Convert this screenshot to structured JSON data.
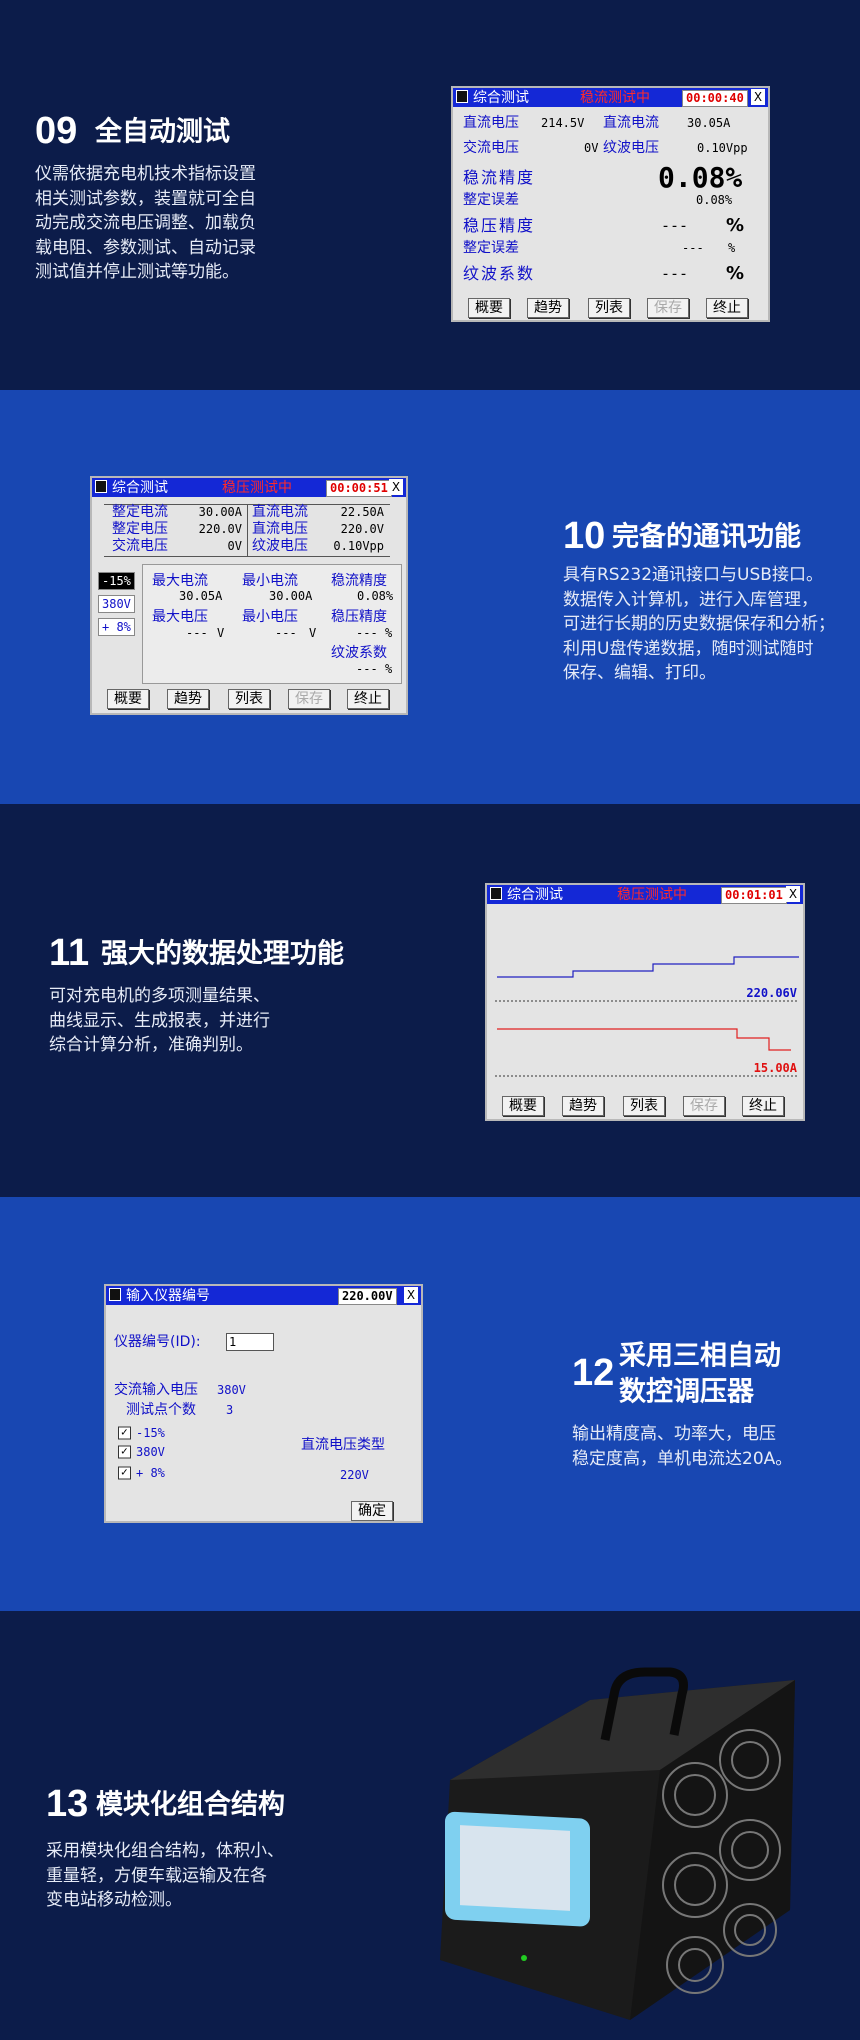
{
  "sections": [
    {
      "number": "09",
      "title": "全自动测试",
      "body": [
        "仪需依据充电机技术指标设置",
        "相关测试参数，装置就可全自",
        "动完成交流电压调整、加载负",
        "载电阻、参数测试、自动记录",
        "测试值并停止测试等功能。"
      ]
    },
    {
      "number": "10",
      "title": "完备的通讯功能",
      "body": [
        "具有RS232通讯接口与USB接口。",
        "数据传入计算机，进行入库管理，",
        "可进行长期的历史数据保存和分析；",
        "利用U盘传递数据，随时测试随时",
        "保存、编辑、打印。"
      ]
    },
    {
      "number": "11",
      "title": "强大的数据处理功能",
      "body": [
        "可对充电机的多项测量结果、",
        "曲线显示、生成报表，并进行",
        "综合计算分析，准确判别。"
      ]
    },
    {
      "number": "12",
      "title": [
        "采用三相自动",
        "数控调压器"
      ],
      "body": [
        "输出精度高、功率大，电压",
        "稳定度高，单机电流达20A。"
      ]
    },
    {
      "number": "13",
      "title": "模块化组合结构",
      "body": [
        "采用模块化组合结构，体积小、",
        "重量轻，方便车载运输及在各",
        "变电站移动检测。"
      ]
    }
  ],
  "screens": [
    {
      "title": "综合测试",
      "status": "稳流测试中",
      "time": "00:00:40",
      "close": "X",
      "r1": [
        "直流电压",
        "214.5V",
        "直流电流",
        "30.05A"
      ],
      "r2": [
        "交流电压",
        "0V",
        "纹波电压",
        "0.10Vpp"
      ],
      "cur_prec": [
        "稳流精度",
        "0.08%"
      ],
      "err1": [
        "整定误差",
        "0.08%"
      ],
      "volt_prec": [
        "稳压精度",
        "---",
        "%"
      ],
      "err2": [
        "整定误差",
        "---",
        "%"
      ],
      "ripple": [
        "纹波系数",
        "---",
        "%"
      ],
      "buttons": [
        "概要",
        "趋势",
        "列表",
        "保存",
        "终止"
      ]
    },
    {
      "title": "综合测试",
      "status": "稳压测试中",
      "time": "00:00:51",
      "close": "X",
      "rows": [
        [
          "整定电流",
          "30.00A",
          "直流电流",
          "22.50A"
        ],
        [
          "整定电压",
          "220.0V",
          "直流电压",
          "220.0V"
        ],
        [
          "交流电压",
          "0V",
          "纹波电压",
          "0.10Vpp"
        ]
      ],
      "side": [
        "-15%",
        "380V",
        "+ 8%"
      ],
      "max_current": [
        "最大电流",
        "30.05A"
      ],
      "min_current": [
        "最小电流",
        "30.00A"
      ],
      "cur_prec": [
        "稳流精度",
        "0.08%"
      ],
      "max_voltage": [
        "最大电压",
        "---",
        "V"
      ],
      "min_voltage": [
        "最小电压",
        "---",
        "V"
      ],
      "volt_prec": [
        "稳压精度",
        "---",
        "%"
      ],
      "ripple": [
        "纹波系数",
        "---",
        "%"
      ],
      "buttons": [
        "概要",
        "趋势",
        "列表",
        "保存",
        "终止"
      ]
    },
    {
      "title": "综合测试",
      "status": "稳压测试中",
      "time": "00:01:01",
      "close": "X",
      "voltage": "220.06V",
      "current": "15.00A",
      "buttons": [
        "概要",
        "趋势",
        "列表",
        "保存",
        "终止"
      ]
    },
    {
      "title": "输入仪器编号",
      "value": "220.00V",
      "close": "X",
      "id_label": "仪器编号(ID):",
      "id_value": "1",
      "ac_label": "交流输入电压",
      "ac_value": "380V",
      "points_label": "测试点个数",
      "points_value": "3",
      "checks": [
        "-15%",
        "380V",
        "+ 8%"
      ],
      "dc_type_label": "直流电压类型",
      "dc_type_value": "220V",
      "ok": "确定"
    }
  ]
}
